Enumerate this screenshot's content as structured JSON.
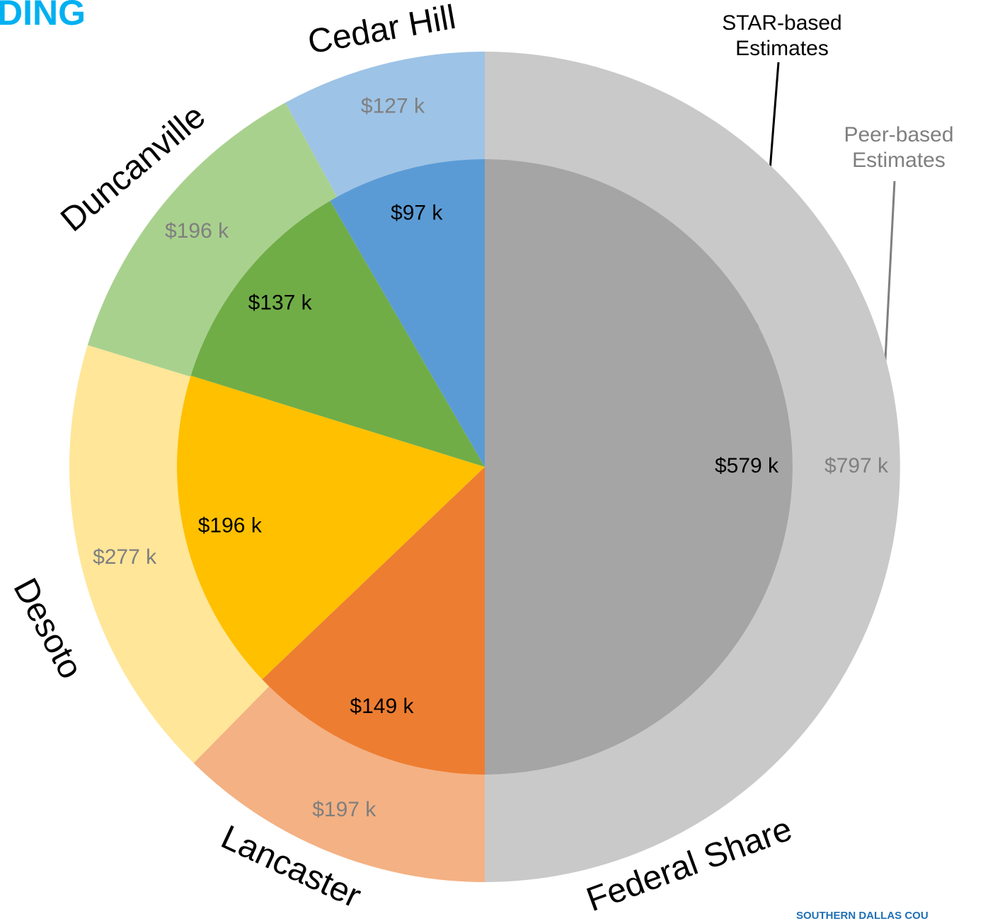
{
  "chart_data": {
    "type": "donut",
    "title": "DING",
    "footer": "SOUTHERN DALLAS COU",
    "categories": [
      "Federal Share",
      "Lancaster",
      "Desoto",
      "Duncanville",
      "Cedar Hill"
    ],
    "series": [
      {
        "name": "Peer-based Estimates",
        "values": [
          797,
          197,
          277,
          196,
          127
        ],
        "value_labels": [
          "$797 k",
          "$197 k",
          "$277 k",
          "$196 k",
          "$127 k"
        ],
        "colors": [
          "#c9c9c9",
          "#f4b183",
          "#ffe699",
          "#a9d18e",
          "#9dc3e6"
        ],
        "label_color": "#7f7f7f"
      },
      {
        "name": "STAR-based Estimates",
        "values": [
          579,
          149,
          196,
          137,
          97
        ],
        "value_labels": [
          "$579 k",
          "$149 k",
          "$196 k",
          "$137 k",
          "$97 k"
        ],
        "colors": [
          "#a5a5a5",
          "#ed7d31",
          "#ffc000",
          "#70ad47",
          "#5b9bd5"
        ],
        "label_color": "#000000"
      }
    ]
  }
}
